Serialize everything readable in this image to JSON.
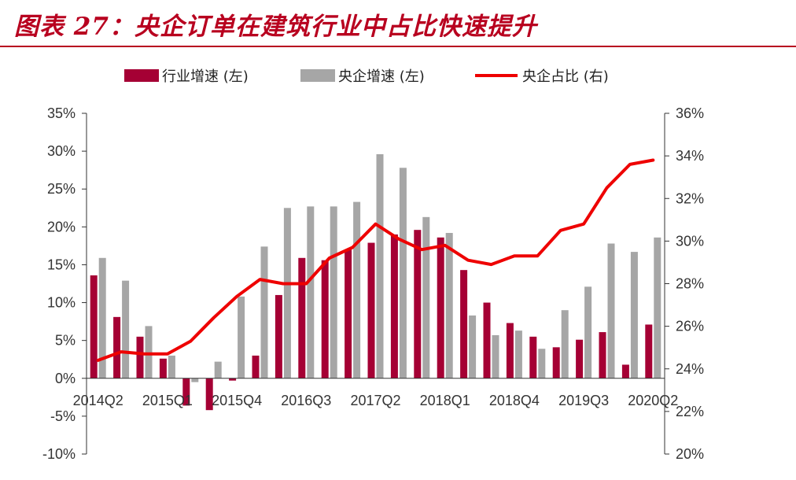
{
  "title": "图表 27：央企订单在建筑行业中占比快速提升",
  "colors": {
    "industry": "#a50034",
    "soe_growth": "#a6a6a6",
    "soe_share": "#ee0000",
    "title": "#b8001f"
  },
  "chart_data": {
    "type": "bar+line",
    "categories": [
      "2014Q2",
      "2014Q3",
      "2014Q4",
      "2015Q1",
      "2015Q2",
      "2015Q3",
      "2015Q4",
      "2016Q1",
      "2016Q2",
      "2016Q3",
      "2016Q4",
      "2017Q1",
      "2017Q2",
      "2017Q3",
      "2017Q4",
      "2018Q1",
      "2018Q2",
      "2018Q3",
      "2018Q4",
      "2019Q1",
      "2019Q2",
      "2019Q3",
      "2019Q4",
      "2020Q1",
      "2020Q2"
    ],
    "x_tick_labels": [
      "2014Q2",
      "2015Q1",
      "2015Q4",
      "2016Q3",
      "2017Q2",
      "2018Q1",
      "2018Q4",
      "2019Q3",
      "2020Q2"
    ],
    "left_axis": {
      "ylim": [
        -10,
        35
      ],
      "ticks": [
        "35%",
        "30%",
        "25%",
        "20%",
        "15%",
        "10%",
        "5%",
        "0%",
        "-5%",
        "-10%"
      ]
    },
    "right_axis": {
      "ylim": [
        20,
        36
      ],
      "ticks": [
        "36%",
        "34%",
        "32%",
        "30%",
        "28%",
        "26%",
        "24%",
        "22%",
        "20%"
      ]
    },
    "series": [
      {
        "name": "行业增速 (左)",
        "type": "bar",
        "axis": "left",
        "values": [
          13.6,
          8.1,
          5.5,
          2.6,
          -3.6,
          -4.2,
          -0.3,
          3.0,
          11.0,
          15.9,
          15.6,
          17.0,
          17.9,
          19.0,
          19.6,
          18.6,
          14.3,
          10.0,
          7.3,
          5.5,
          4.1,
          5.1,
          6.1,
          1.8,
          7.1
        ]
      },
      {
        "name": "央企增速 (左)",
        "type": "bar",
        "axis": "left",
        "values": [
          15.9,
          12.9,
          6.9,
          3.0,
          -0.5,
          2.2,
          10.8,
          17.4,
          22.5,
          22.7,
          22.7,
          23.3,
          29.6,
          27.8,
          21.3,
          19.2,
          8.3,
          5.7,
          6.3,
          3.9,
          9.0,
          12.1,
          17.8,
          16.7,
          18.6
        ]
      },
      {
        "name": "央企占比 (右)",
        "type": "line",
        "axis": "right",
        "values": [
          24.4,
          24.8,
          24.7,
          24.7,
          25.3,
          26.4,
          27.4,
          28.2,
          28.0,
          28.0,
          29.2,
          29.7,
          30.8,
          30.1,
          29.6,
          29.8,
          29.1,
          28.9,
          29.3,
          29.3,
          30.5,
          30.8,
          32.5,
          33.6,
          33.8
        ]
      }
    ]
  }
}
